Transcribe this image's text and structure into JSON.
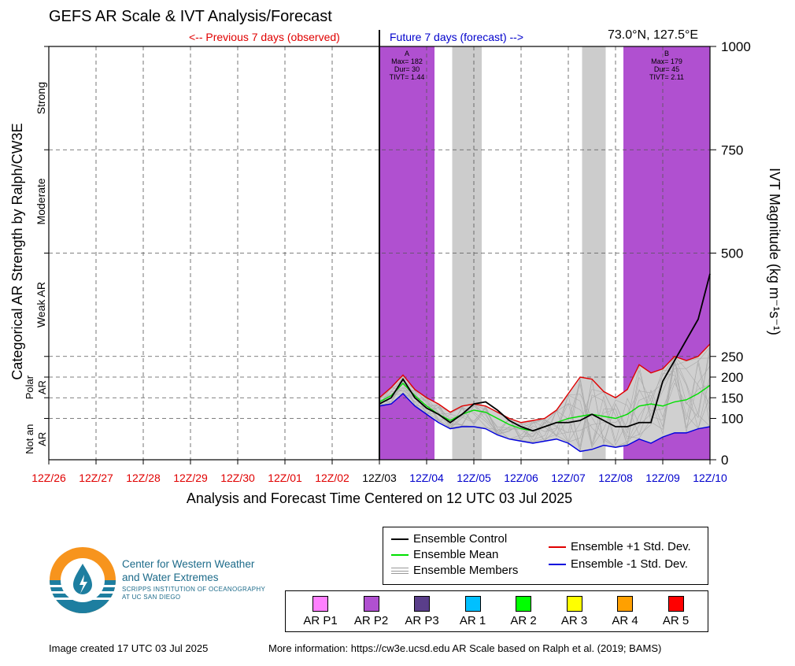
{
  "header": {
    "title": "GEFS AR Scale & IVT Analysis/Forecast",
    "prev_label": "<-- Previous 7 days (observed)",
    "future_label": "Future 7 days (forecast) -->",
    "location": "73.0°N, 127.5°E"
  },
  "footer": {
    "created": "Image created 17 UTC 03 Jul 2025",
    "more_info": "More information: https://cw3e.ucsd.edu AR Scale based on Ralph et al. (2019; BAMS)"
  },
  "logo": {
    "org_name_line1": "Center for Western Weather",
    "org_name_line2": "and Water Extremes",
    "org_sub_line1": "SCRIPPS INSTITUTION OF OCEANOGRAPHY",
    "org_sub_line2": "AT UC SAN DIEGO"
  },
  "legend": {
    "control": "Ensemble Control",
    "mean": "Ensemble Mean",
    "members": "Ensemble Members",
    "plus_std": "Ensemble +1 Std. Dev.",
    "minus_std": "Ensemble -1 Std. Dev."
  },
  "categories": [
    {
      "label": "AR P1",
      "color": "#ff80ff"
    },
    {
      "label": "AR P2",
      "color": "#b050d0"
    },
    {
      "label": "AR P3",
      "color": "#5a3e8a"
    },
    {
      "label": "AR 1",
      "color": "#00c0ff"
    },
    {
      "label": "AR 2",
      "color": "#00ff00"
    },
    {
      "label": "AR 3",
      "color": "#ffff00"
    },
    {
      "label": "AR 4",
      "color": "#ffa000"
    },
    {
      "label": "AR 5",
      "color": "#ff0000"
    }
  ],
  "colors": {
    "control": "#000000",
    "mean": "#00e000",
    "plus_std": "#e00000",
    "minus_std": "#0000dd",
    "members": "#aaaaaa",
    "envelope": "#d0d0d0",
    "ar_p2": "#b050d0",
    "gray_band": "#cccccc",
    "observed_tick": "#e00000",
    "forecast_tick": "#0000cc"
  },
  "chart_data": {
    "type": "line",
    "xlabel": "Analysis and Forecast Time Centered on 12 UTC 03 Jul 2025",
    "ylabel_left": "Categorical AR Strength by Ralph/CW3E",
    "ylabel_right": "IVT Magnitude (kg m⁻¹s⁻¹)",
    "x_unit": "hours from 12Z/03 Jul 2025",
    "xlim": [
      -168,
      168
    ],
    "ylim": [
      0,
      1000
    ],
    "x_ticks": [
      {
        "label": "12Z/26",
        "x": -168,
        "period": "observed"
      },
      {
        "label": "12Z/27",
        "x": -144,
        "period": "observed"
      },
      {
        "label": "12Z/28",
        "x": -120,
        "period": "observed"
      },
      {
        "label": "12Z/29",
        "x": -96,
        "period": "observed"
      },
      {
        "label": "12Z/30",
        "x": -72,
        "period": "observed"
      },
      {
        "label": "12Z/01",
        "x": -48,
        "period": "observed"
      },
      {
        "label": "12Z/02",
        "x": -24,
        "period": "observed"
      },
      {
        "label": "12Z/03",
        "x": 0,
        "period": "now"
      },
      {
        "label": "12Z/04",
        "x": 24,
        "period": "forecast"
      },
      {
        "label": "12Z/05",
        "x": 48,
        "period": "forecast"
      },
      {
        "label": "12Z/06",
        "x": 72,
        "period": "forecast"
      },
      {
        "label": "12Z/07",
        "x": 96,
        "period": "forecast"
      },
      {
        "label": "12Z/08",
        "x": 120,
        "period": "forecast"
      },
      {
        "label": "12Z/09",
        "x": 144,
        "period": "forecast"
      },
      {
        "label": "12Z/10",
        "x": 168,
        "period": "forecast"
      }
    ],
    "y_ticks_right": [
      0,
      100,
      150,
      200,
      250,
      500,
      750,
      1000
    ],
    "hlines": [
      100,
      150,
      200,
      250,
      500,
      750
    ],
    "left_categories": [
      {
        "label": "Not an AR",
        "line1": "Not an",
        "line2": "AR",
        "y_low": 0,
        "y_high": 100
      },
      {
        "label": "Polar AR",
        "line1": "Polar",
        "line2": "AR",
        "y_low": 100,
        "y_high": 250
      },
      {
        "label": "Weak AR",
        "y_low": 250,
        "y_high": 500
      },
      {
        "label": "Moderate",
        "y_low": 500,
        "y_high": 750
      },
      {
        "label": "Strong",
        "y_low": 750,
        "y_high": 1000
      }
    ],
    "ar_events": [
      {
        "id": "A",
        "start": 0,
        "end": 28,
        "category": "AR P2",
        "max_label": "Max= 182",
        "dur_label": "Dur= 30",
        "tivt_label": "TIVT= 1.44"
      },
      {
        "id": "B",
        "start": 124,
        "end": 168,
        "category": "AR P2",
        "max_label": "Max= 179",
        "dur_label": "Dur= 45",
        "tivt_label": "TIVT= 2.11"
      }
    ],
    "gray_bands": [
      [
        37,
        52
      ],
      [
        103,
        115
      ]
    ],
    "series": [
      {
        "name": "Ensemble Control",
        "x": [
          0,
          6,
          12,
          18,
          24,
          30,
          36,
          42,
          48,
          54,
          60,
          66,
          72,
          78,
          84,
          90,
          96,
          102,
          108,
          114,
          120,
          126,
          132,
          138,
          144,
          150,
          156,
          162,
          168
        ],
        "values": [
          135,
          150,
          195,
          150,
          125,
          110,
          90,
          110,
          135,
          140,
          120,
          95,
          80,
          70,
          80,
          90,
          90,
          95,
          110,
          95,
          80,
          80,
          90,
          90,
          190,
          240,
          290,
          340,
          450
        ]
      },
      {
        "name": "Ensemble Mean",
        "x": [
          0,
          6,
          12,
          18,
          24,
          30,
          36,
          42,
          48,
          54,
          60,
          66,
          72,
          78,
          84,
          90,
          96,
          102,
          108,
          114,
          120,
          126,
          132,
          138,
          144,
          150,
          156,
          162,
          168
        ],
        "values": [
          140,
          155,
          185,
          155,
          130,
          110,
          95,
          110,
          120,
          115,
          100,
          85,
          75,
          70,
          80,
          90,
          100,
          105,
          110,
          105,
          100,
          110,
          130,
          135,
          130,
          140,
          145,
          160,
          180
        ]
      },
      {
        "name": "Ensemble +1 Std. Dev.",
        "x": [
          0,
          6,
          12,
          18,
          24,
          30,
          36,
          42,
          48,
          54,
          60,
          66,
          72,
          78,
          84,
          90,
          96,
          102,
          108,
          114,
          120,
          126,
          132,
          138,
          144,
          150,
          156,
          162,
          168
        ],
        "values": [
          150,
          175,
          205,
          170,
          150,
          135,
          115,
          130,
          135,
          130,
          115,
          100,
          90,
          95,
          100,
          120,
          160,
          200,
          195,
          165,
          150,
          170,
          230,
          210,
          220,
          250,
          240,
          250,
          280
        ]
      },
      {
        "name": "Ensemble -1 Std. Dev.",
        "x": [
          0,
          6,
          12,
          18,
          24,
          30,
          36,
          42,
          48,
          54,
          60,
          66,
          72,
          78,
          84,
          90,
          96,
          102,
          108,
          114,
          120,
          126,
          132,
          138,
          144,
          150,
          156,
          162,
          168
        ],
        "values": [
          130,
          135,
          160,
          130,
          110,
          90,
          75,
          80,
          80,
          75,
          60,
          50,
          45,
          40,
          45,
          50,
          40,
          20,
          25,
          35,
          30,
          35,
          50,
          40,
          55,
          65,
          65,
          75,
          80
        ]
      }
    ]
  }
}
